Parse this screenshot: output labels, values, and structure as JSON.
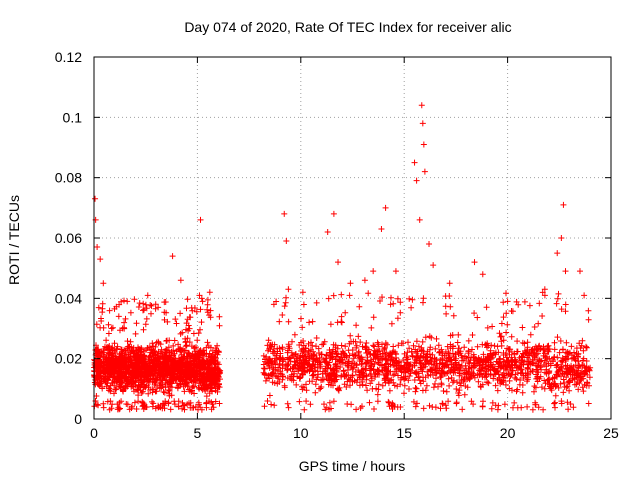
{
  "chart_data": {
    "type": "scatter",
    "title": "Day 074 of 2020, Rate Of TEC Index for receiver alic",
    "xlabel": "GPS time / hours",
    "ylabel": "ROTI / TECUs",
    "xlim": [
      0,
      25
    ],
    "ylim": [
      0,
      0.12
    ],
    "xticks": [
      0,
      5,
      10,
      15,
      20,
      25
    ],
    "xtick_labels": [
      "0",
      "5",
      "10",
      "15",
      "20",
      "25"
    ],
    "yticks": [
      0,
      0.02,
      0.04,
      0.06,
      0.08,
      0.1,
      0.12
    ],
    "ytick_labels": [
      "0",
      "0.02",
      "0.04",
      "0.06",
      "0.08",
      "0.1",
      "0.12"
    ],
    "grid": true,
    "marker": "plus",
    "color": "#ff0000",
    "data_segments": [
      {
        "x_range": [
          0.0,
          6.1
        ],
        "typical_range": [
          0.006,
          0.028
        ],
        "median": 0.015
      },
      {
        "x_range": [
          8.2,
          24.0
        ],
        "typical_range": [
          0.006,
          0.03
        ],
        "median": 0.016
      }
    ],
    "notable_points": [
      {
        "x": 0.05,
        "y": 0.073
      },
      {
        "x": 0.08,
        "y": 0.066
      },
      {
        "x": 0.15,
        "y": 0.057
      },
      {
        "x": 0.3,
        "y": 0.053
      },
      {
        "x": 0.45,
        "y": 0.045
      },
      {
        "x": 1.2,
        "y": 0.034
      },
      {
        "x": 2.6,
        "y": 0.041
      },
      {
        "x": 3.1,
        "y": 0.037
      },
      {
        "x": 3.8,
        "y": 0.054
      },
      {
        "x": 4.2,
        "y": 0.046
      },
      {
        "x": 5.1,
        "y": 0.041
      },
      {
        "x": 5.15,
        "y": 0.066
      },
      {
        "x": 5.6,
        "y": 0.042
      },
      {
        "x": 8.7,
        "y": 0.038
      },
      {
        "x": 9.2,
        "y": 0.068
      },
      {
        "x": 9.3,
        "y": 0.059
      },
      {
        "x": 9.4,
        "y": 0.043
      },
      {
        "x": 10.1,
        "y": 0.042
      },
      {
        "x": 11.3,
        "y": 0.062
      },
      {
        "x": 11.6,
        "y": 0.068
      },
      {
        "x": 11.8,
        "y": 0.052
      },
      {
        "x": 12.4,
        "y": 0.045
      },
      {
        "x": 13.1,
        "y": 0.046
      },
      {
        "x": 13.5,
        "y": 0.049
      },
      {
        "x": 13.9,
        "y": 0.063
      },
      {
        "x": 14.1,
        "y": 0.07
      },
      {
        "x": 14.6,
        "y": 0.049
      },
      {
        "x": 15.5,
        "y": 0.085
      },
      {
        "x": 15.6,
        "y": 0.079
      },
      {
        "x": 15.75,
        "y": 0.066
      },
      {
        "x": 15.85,
        "y": 0.104
      },
      {
        "x": 15.9,
        "y": 0.098
      },
      {
        "x": 15.95,
        "y": 0.091
      },
      {
        "x": 16.0,
        "y": 0.082
      },
      {
        "x": 16.2,
        "y": 0.058
      },
      {
        "x": 16.4,
        "y": 0.051
      },
      {
        "x": 17.2,
        "y": 0.045
      },
      {
        "x": 18.4,
        "y": 0.052
      },
      {
        "x": 18.8,
        "y": 0.048
      },
      {
        "x": 20.0,
        "y": 0.039
      },
      {
        "x": 21.8,
        "y": 0.043
      },
      {
        "x": 22.4,
        "y": 0.055
      },
      {
        "x": 22.6,
        "y": 0.06
      },
      {
        "x": 22.7,
        "y": 0.071
      },
      {
        "x": 22.8,
        "y": 0.049
      },
      {
        "x": 23.5,
        "y": 0.049
      },
      {
        "x": 23.7,
        "y": 0.041
      }
    ]
  }
}
